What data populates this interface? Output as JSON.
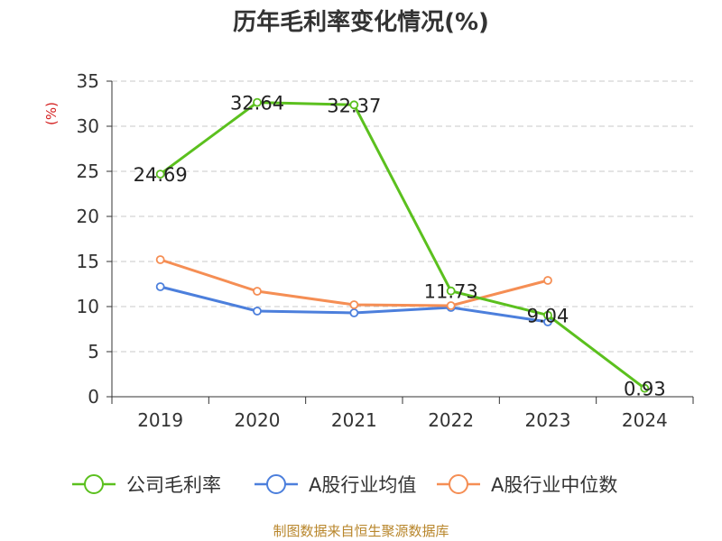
{
  "title": "历年毛利率变化情况(%)",
  "source": "制图数据来自恒生聚源数据库",
  "colors": {
    "company": "#5bc01e",
    "industry_avg": "#4c7fdc",
    "industry_median": "#f58e54",
    "unit_label": "#d42020"
  },
  "chart_data": {
    "type": "line",
    "title": "历年毛利率变化情况(%)",
    "ylabel": "(%)",
    "xlabel": "",
    "categories": [
      "2019",
      "2020",
      "2021",
      "2022",
      "2023",
      "2024"
    ],
    "ylim": [
      0,
      35
    ],
    "yticks": [
      "0",
      "5",
      "10",
      "15",
      "20",
      "25",
      "30",
      "35"
    ],
    "grid": true,
    "legend_position": "bottom",
    "series": [
      {
        "name": "公司毛利率",
        "values": [
          24.69,
          32.64,
          32.37,
          11.73,
          9.04,
          0.93
        ],
        "labels": [
          "24.69",
          "32.64",
          "32.37",
          "11.73",
          "9.04",
          "0.93"
        ]
      },
      {
        "name": "A股行业均值",
        "values": [
          12.2,
          9.5,
          9.3,
          9.9,
          8.3,
          null
        ]
      },
      {
        "name": "A股行业中位数",
        "values": [
          15.2,
          11.7,
          10.2,
          10.1,
          12.9,
          null
        ]
      }
    ]
  }
}
